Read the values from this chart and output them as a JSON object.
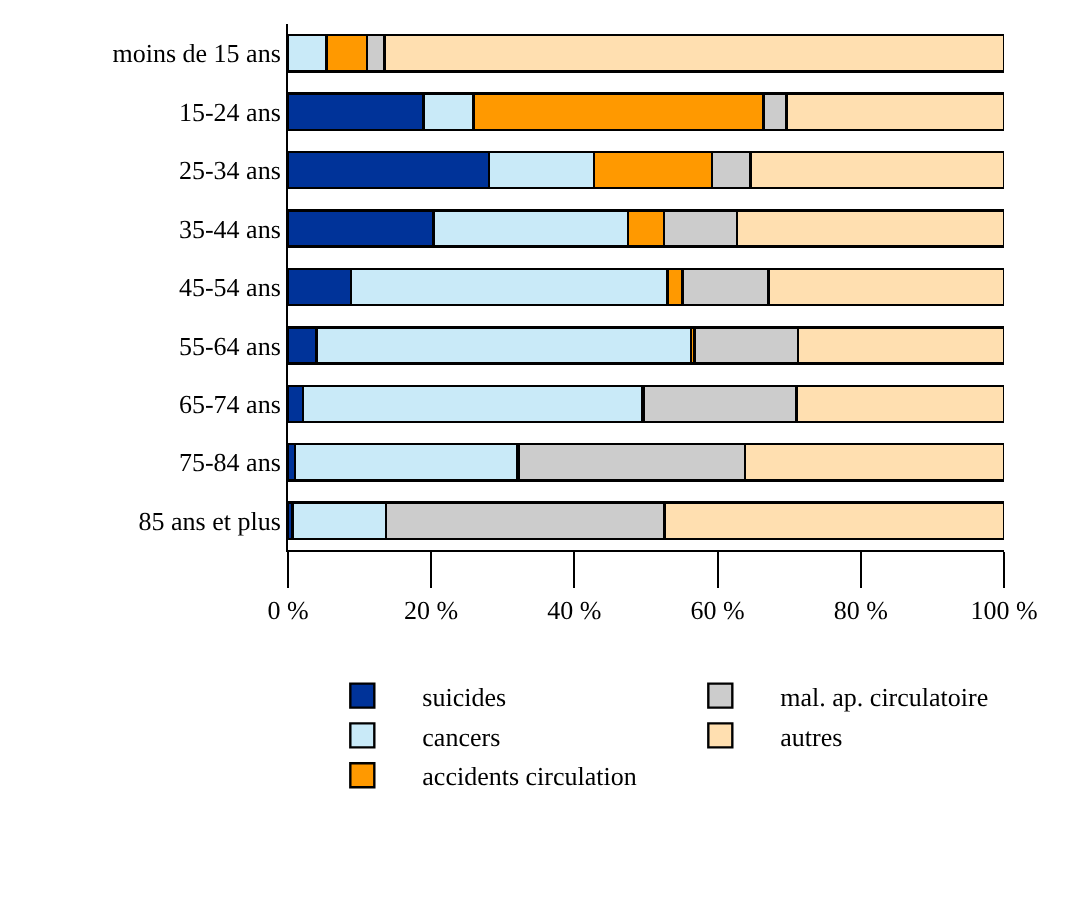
{
  "chart_data": {
    "type": "bar",
    "orientation": "horizontal",
    "stacked": true,
    "legend": "bottom",
    "grid": false,
    "categories": [
      "moins de 15 ans",
      "15-24 ans",
      "25-34 ans",
      "35-44 ans",
      "45-54 ans",
      "55-64 ans",
      "65-74 ans",
      "75-84 ans",
      "85 ans et plus"
    ],
    "series": [
      {
        "name": "suicides",
        "color": "#003399",
        "values": [
          0,
          18.9,
          28.1,
          20.3,
          8.8,
          4.0,
          2.1,
          1.0,
          0.6
        ]
      },
      {
        "name": "cancers",
        "color": "#c9eaf8",
        "values": [
          5.4,
          7.0,
          14.6,
          27.2,
          44.2,
          52.3,
          47.3,
          31.0,
          13.1
        ]
      },
      {
        "name": "accidents circulation",
        "color": "#ff9900",
        "values": [
          5.6,
          40.5,
          16.5,
          5.0,
          2.1,
          0.5,
          0.3,
          0.2,
          0
        ]
      },
      {
        "name": "mal. ap. circulatoire",
        "color": "#cccccc",
        "values": [
          2.5,
          3.2,
          5.4,
          10.2,
          12.0,
          14.4,
          21.3,
          31.6,
          38.9
        ]
      },
      {
        "name": "autres",
        "color": "#ffdfb0",
        "values": [
          86.5,
          30.4,
          35.4,
          37.3,
          32.9,
          28.8,
          29.0,
          36.2,
          47.4
        ]
      }
    ],
    "xlim": [
      0,
      100
    ],
    "xticks": [
      {
        "value": 0,
        "label": "0 %"
      },
      {
        "value": 20,
        "label": "20 %"
      },
      {
        "value": 40,
        "label": "40 %"
      },
      {
        "value": 60,
        "label": "60 %"
      },
      {
        "value": 80,
        "label": "80 %"
      },
      {
        "value": 100,
        "label": "100 %"
      }
    ]
  }
}
